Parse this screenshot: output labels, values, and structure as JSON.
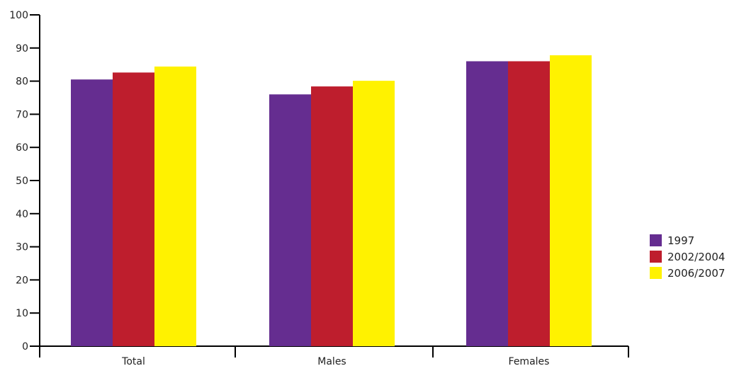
{
  "chart_data": {
    "type": "bar",
    "title": "",
    "xlabel": "",
    "ylabel": "",
    "ylim": [
      0,
      100
    ],
    "yticks": [
      "0",
      "10",
      "20",
      "30",
      "40",
      "50",
      "60",
      "70",
      "80",
      "90",
      "100"
    ],
    "categories": [
      "Total",
      "Males",
      "Females"
    ],
    "series": [
      {
        "name": "1997",
        "color": "#652d90",
        "values": [
          80.5,
          76,
          86
        ]
      },
      {
        "name": "2002/2004",
        "color": "#be1e2d",
        "values": [
          82.6,
          78.4,
          86
        ]
      },
      {
        "name": "2006/2007",
        "color": "#fff200",
        "values": [
          84.4,
          80.1,
          87.8
        ]
      }
    ],
    "legend_position": "right",
    "grid": false
  }
}
